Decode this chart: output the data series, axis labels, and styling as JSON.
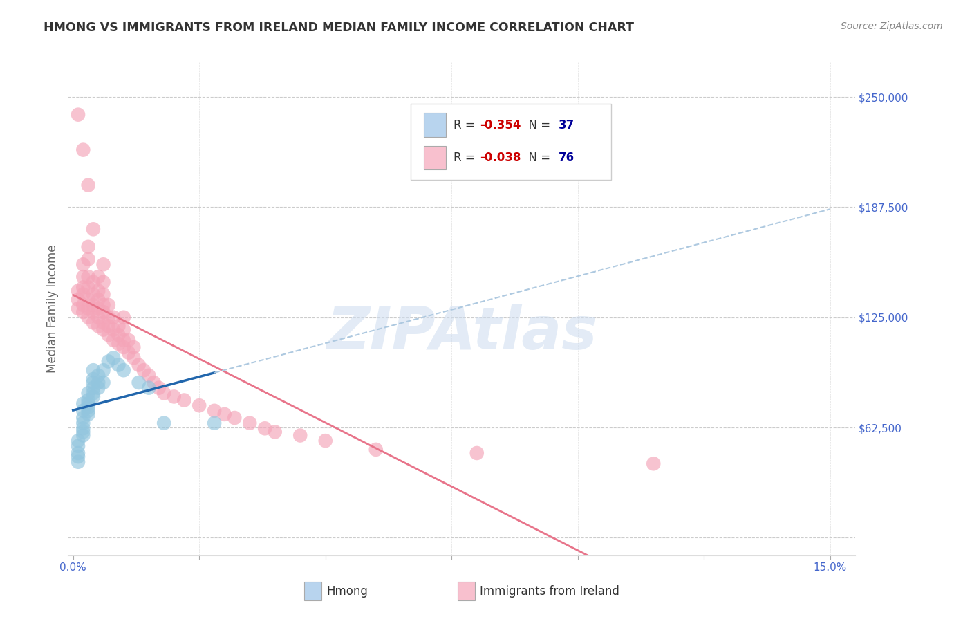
{
  "title": "HMONG VS IMMIGRANTS FROM IRELAND MEDIAN FAMILY INCOME CORRELATION CHART",
  "source": "Source: ZipAtlas.com",
  "ylabel": "Median Family Income",
  "ylim": [
    -10000,
    270000
  ],
  "xlim": [
    -0.001,
    0.155
  ],
  "watermark": "ZIPAtlas",
  "hmong_color": "#92c5de",
  "ireland_color": "#f4a4b8",
  "hmong_trend_color": "#2166ac",
  "ireland_trend_color": "#e8748a",
  "hmong_trend_dashed_color": "#aec9e0",
  "background_color": "#ffffff",
  "grid_color": "#cccccc",
  "ytick_vals": [
    0,
    62500,
    125000,
    187500,
    250000
  ],
  "ytick_labels": [
    "",
    "$62,500",
    "$125,000",
    "$187,500",
    "$250,000"
  ],
  "xtick_vals": [
    0.0,
    0.025,
    0.05,
    0.075,
    0.1,
    0.125,
    0.15
  ],
  "xtick_labels": [
    "0.0%",
    "",
    "",
    "",
    "",
    "",
    "15.0%"
  ],
  "hmong_x": [
    0.001,
    0.001,
    0.001,
    0.001,
    0.001,
    0.002,
    0.002,
    0.002,
    0.002,
    0.002,
    0.002,
    0.002,
    0.003,
    0.003,
    0.003,
    0.003,
    0.003,
    0.003,
    0.004,
    0.004,
    0.004,
    0.004,
    0.004,
    0.004,
    0.005,
    0.005,
    0.005,
    0.006,
    0.006,
    0.007,
    0.008,
    0.009,
    0.01,
    0.013,
    0.015,
    0.018,
    0.028
  ],
  "hmong_y": [
    43000,
    46000,
    48000,
    52000,
    55000,
    58000,
    60000,
    62000,
    65000,
    68000,
    72000,
    76000,
    70000,
    72000,
    74000,
    76000,
    78000,
    82000,
    80000,
    82000,
    85000,
    88000,
    90000,
    95000,
    85000,
    88000,
    92000,
    88000,
    95000,
    100000,
    102000,
    98000,
    95000,
    88000,
    85000,
    65000,
    65000
  ],
  "ireland_x": [
    0.001,
    0.001,
    0.001,
    0.001,
    0.002,
    0.002,
    0.002,
    0.002,
    0.002,
    0.002,
    0.002,
    0.003,
    0.003,
    0.003,
    0.003,
    0.003,
    0.003,
    0.003,
    0.003,
    0.004,
    0.004,
    0.004,
    0.004,
    0.004,
    0.004,
    0.005,
    0.005,
    0.005,
    0.005,
    0.005,
    0.005,
    0.006,
    0.006,
    0.006,
    0.006,
    0.006,
    0.006,
    0.006,
    0.007,
    0.007,
    0.007,
    0.007,
    0.008,
    0.008,
    0.008,
    0.009,
    0.009,
    0.009,
    0.01,
    0.01,
    0.01,
    0.01,
    0.011,
    0.011,
    0.012,
    0.012,
    0.013,
    0.014,
    0.015,
    0.016,
    0.017,
    0.018,
    0.02,
    0.022,
    0.025,
    0.028,
    0.03,
    0.032,
    0.035,
    0.038,
    0.04,
    0.045,
    0.05,
    0.06,
    0.08,
    0.115
  ],
  "ireland_y": [
    130000,
    135000,
    140000,
    240000,
    128000,
    132000,
    138000,
    142000,
    148000,
    155000,
    220000,
    125000,
    130000,
    135000,
    142000,
    148000,
    158000,
    165000,
    200000,
    122000,
    128000,
    132000,
    138000,
    145000,
    175000,
    120000,
    125000,
    130000,
    135000,
    140000,
    148000,
    118000,
    122000,
    128000,
    132000,
    138000,
    145000,
    155000,
    115000,
    120000,
    125000,
    132000,
    112000,
    118000,
    125000,
    110000,
    115000,
    120000,
    108000,
    112000,
    118000,
    125000,
    105000,
    112000,
    102000,
    108000,
    98000,
    95000,
    92000,
    88000,
    85000,
    82000,
    80000,
    78000,
    75000,
    72000,
    70000,
    68000,
    65000,
    62000,
    60000,
    58000,
    55000,
    50000,
    48000,
    42000
  ],
  "hmong_R": "-0.354",
  "hmong_N": "37",
  "ireland_R": "-0.038",
  "ireland_N": "76",
  "legend_blue_color": "#b8d4ee",
  "legend_pink_color": "#f8c0ce",
  "r_text_color": "#cc0000",
  "n_text_color": "#000099",
  "axis_tick_color": "#4466cc",
  "ylabel_color": "#666666",
  "title_color": "#333333",
  "source_color": "#888888"
}
